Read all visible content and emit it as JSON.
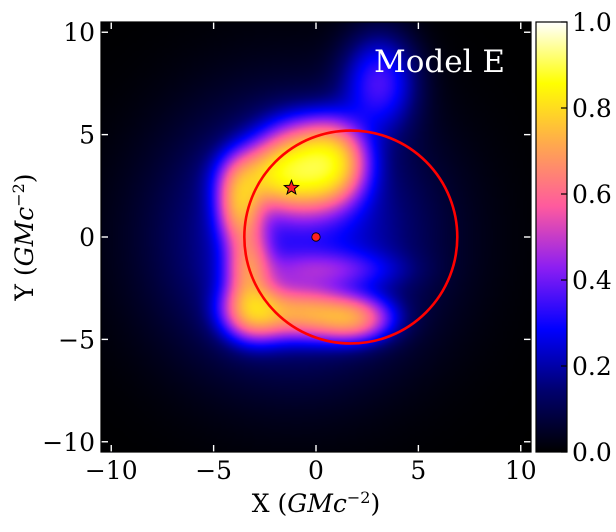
{
  "chart_data": {
    "type": "heatmap",
    "title": "",
    "annotation": "Model E",
    "xlabel": "X (GMc⁻²)",
    "ylabel": "Y (GMc⁻²)",
    "xlim": [
      -10.5,
      10.5
    ],
    "ylim": [
      -10.5,
      10.5
    ],
    "xticks": [
      -10,
      -5,
      0,
      5,
      10
    ],
    "yticks": [
      -10,
      -5,
      0,
      5,
      10
    ],
    "xtick_labels": [
      "−10",
      "−5",
      "0",
      "5",
      "10"
    ],
    "ytick_labels": [
      "−10",
      "−5",
      "0",
      "5",
      "10"
    ],
    "colorbar": {
      "range": [
        0.0,
        1.0
      ],
      "ticks": [
        0.0,
        0.2,
        0.4,
        0.6,
        0.8,
        1.0
      ],
      "tick_labels": [
        "0.0",
        "0.2",
        "0.4",
        "0.6",
        "0.8",
        "1.0"
      ],
      "colormap": "gnuplot2",
      "colors": [
        "#000000",
        "#00006e",
        "#0000ff",
        "#8c1ef2",
        "#ff5a9e",
        "#ffa84e",
        "#ffff00",
        "#ffffff"
      ]
    },
    "circle": {
      "center": [
        1.7,
        0.0
      ],
      "radius": 5.2,
      "color": "#ff0000"
    },
    "markers": [
      {
        "name": "star",
        "x": -1.2,
        "y": 2.4,
        "color": "#ff2020"
      },
      {
        "name": "center-dot",
        "x": 0.0,
        "y": 0.0,
        "color": "#ff2020"
      }
    ],
    "intensity_blobs": [
      {
        "x": -0.6,
        "y": 3.4,
        "sx": 1.4,
        "sy": 1.3,
        "a": 0.92
      },
      {
        "x": 0.9,
        "y": 3.7,
        "sx": 1.0,
        "sy": 1.2,
        "a": 0.55
      },
      {
        "x": -2.4,
        "y": 3.0,
        "sx": 1.3,
        "sy": 0.9,
        "a": 0.45
      },
      {
        "x": -3.7,
        "y": 1.6,
        "sx": 0.7,
        "sy": 1.2,
        "a": 0.6
      },
      {
        "x": -3.3,
        "y": -1.4,
        "sx": 0.7,
        "sy": 1.3,
        "a": 0.45
      },
      {
        "x": -3.0,
        "y": -3.6,
        "sx": 1.0,
        "sy": 0.9,
        "a": 0.65
      },
      {
        "x": -0.6,
        "y": -3.7,
        "sx": 1.4,
        "sy": 0.8,
        "a": 0.55
      },
      {
        "x": 1.8,
        "y": -4.0,
        "sx": 1.2,
        "sy": 0.7,
        "a": 0.55
      },
      {
        "x": 3.1,
        "y": 7.6,
        "sx": 1.2,
        "sy": 1.6,
        "a": 0.25
      },
      {
        "x": -1.0,
        "y": 0.0,
        "sx": 4.2,
        "sy": 4.2,
        "a": 0.22
      },
      {
        "x": 0.4,
        "y": -1.6,
        "sx": 2.2,
        "sy": 0.6,
        "a": 0.18
      }
    ]
  }
}
